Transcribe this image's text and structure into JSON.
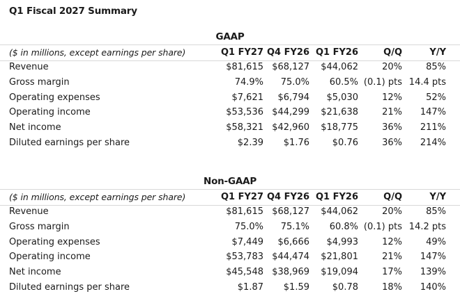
{
  "title": "Q1 Fiscal 2027 Summary",
  "tables": [
    {
      "section_title": "GAAP",
      "header": {
        "label": "($ in millions, except earnings per share)",
        "columns": [
          "Q1 FY27",
          "Q4 FY26",
          "Q1 FY26",
          "Q/Q",
          "Y/Y"
        ]
      },
      "rows": [
        {
          "label": "Revenue",
          "values": [
            "$81,615",
            "$68,127",
            "$44,062",
            "20%",
            "85%"
          ]
        },
        {
          "label": "Gross margin",
          "values": [
            "74.9%",
            "75.0%",
            "60.5%",
            "(0.1) pts",
            "14.4 pts"
          ]
        },
        {
          "label": "Operating expenses",
          "values": [
            "$7,621",
            "$6,794",
            "$5,030",
            "12%",
            "52%"
          ]
        },
        {
          "label": "Operating income",
          "values": [
            "$53,536",
            "$44,299",
            "$21,638",
            "21%",
            "147%"
          ]
        },
        {
          "label": "Net income",
          "values": [
            "$58,321",
            "$42,960",
            "$18,775",
            "36%",
            "211%"
          ]
        },
        {
          "label": "Diluted earnings per share",
          "values": [
            "$2.39",
            "$1.76",
            "$0.76",
            "36%",
            "214%"
          ]
        }
      ]
    },
    {
      "section_title": "Non-GAAP",
      "header": {
        "label": "($ in millions, except earnings per share)",
        "columns": [
          "Q1 FY27",
          "Q4 FY26",
          "Q1 FY26",
          "Q/Q",
          "Y/Y"
        ]
      },
      "rows": [
        {
          "label": "Revenue",
          "values": [
            "$81,615",
            "$68,127",
            "$44,062",
            "20%",
            "85%"
          ]
        },
        {
          "label": "Gross margin",
          "values": [
            "75.0%",
            "75.1%",
            "60.8%",
            "(0.1) pts",
            "14.2 pts"
          ]
        },
        {
          "label": "Operating expenses",
          "values": [
            "$7,449",
            "$6,666",
            "$4,993",
            "12%",
            "49%"
          ]
        },
        {
          "label": "Operating income",
          "values": [
            "$53,783",
            "$44,474",
            "$21,801",
            "21%",
            "147%"
          ]
        },
        {
          "label": "Net income",
          "values": [
            "$45,548",
            "$38,969",
            "$19,094",
            "17%",
            "139%"
          ]
        },
        {
          "label": "Diluted earnings per share",
          "values": [
            "$1.87",
            "$1.59",
            "$0.78",
            "18%",
            "140%"
          ]
        }
      ]
    }
  ]
}
